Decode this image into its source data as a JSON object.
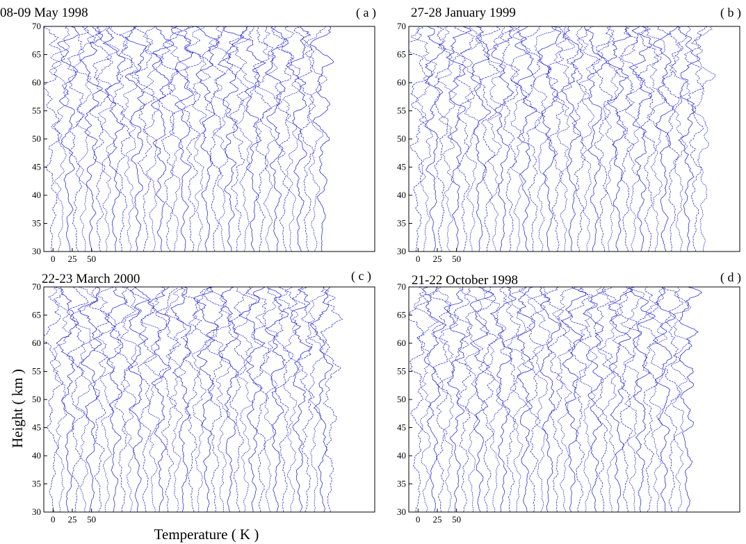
{
  "figure": {
    "ylabel": "Height ( km )",
    "xlabel": "Temperature ( K )"
  },
  "chart_data": [
    {
      "type": "line",
      "title": "08-09 May 1998",
      "panel_label": "( a )",
      "xlabel": "Temperature ( K )",
      "ylabel": "Height ( km )",
      "ylim": [
        30,
        70
      ],
      "yticks": [
        30,
        35,
        40,
        45,
        50,
        55,
        60,
        65,
        70
      ],
      "xticks": [
        0,
        25,
        50
      ],
      "xlim": [
        -12,
        418
      ],
      "profile_count": 36,
      "profile_spacing_K": 10,
      "series_color": "#1515d6",
      "grid": false,
      "seed": 11
    },
    {
      "type": "line",
      "title": "27-28 January 1999",
      "panel_label": "( b )",
      "xlabel": "Temperature ( K )",
      "ylabel": "Height ( km )",
      "ylim": [
        30,
        70
      ],
      "yticks": [
        30,
        35,
        40,
        45,
        50,
        55,
        60,
        65,
        70
      ],
      "xticks": [
        0,
        25,
        50
      ],
      "xlim": [
        -12,
        418
      ],
      "profile_count": 38,
      "profile_spacing_K": 10,
      "series_color": "#1515d6",
      "grid": false,
      "seed": 23
    },
    {
      "type": "line",
      "title": "22-23 March 2000",
      "panel_label": "( c )",
      "xlabel": "Temperature ( K )",
      "ylabel": "Height ( km )",
      "ylim": [
        30,
        70
      ],
      "yticks": [
        30,
        35,
        40,
        45,
        50,
        55,
        60,
        65,
        70
      ],
      "xticks": [
        0,
        25,
        50
      ],
      "xlim": [
        -12,
        418
      ],
      "profile_count": 37,
      "profile_spacing_K": 10,
      "series_color": "#1515d6",
      "grid": false,
      "seed": 37
    },
    {
      "type": "line",
      "title": "21-22 October 1998",
      "panel_label": "( d )",
      "xlabel": "Temperature ( K )",
      "ylabel": "Height ( km )",
      "ylim": [
        30,
        70
      ],
      "yticks": [
        30,
        35,
        40,
        45,
        50,
        55,
        60,
        65,
        70
      ],
      "xticks": [
        0,
        25,
        50
      ],
      "xlim": [
        -12,
        418
      ],
      "profile_count": 36,
      "profile_spacing_K": 10,
      "series_color": "#1515d6",
      "grid": false,
      "seed": 51
    }
  ]
}
